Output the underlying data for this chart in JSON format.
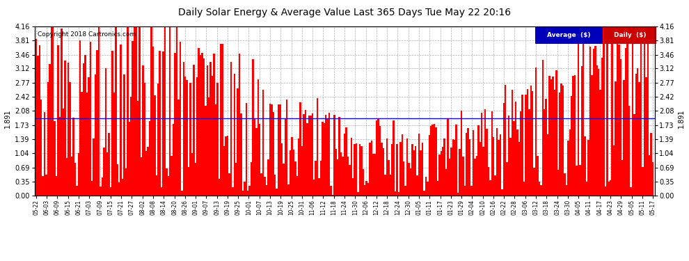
{
  "title": "Daily Solar Energy & Average Value Last 365 Days Tue May 22 20:16",
  "copyright": "Copyright 2018 Cartronics.com",
  "average_value": 1.891,
  "average_label": "1.891",
  "bar_color": "#FF0000",
  "average_line_color": "#0000FF",
  "background_color": "#FFFFFF",
  "plot_bg_color": "#FFFFFF",
  "grid_color": "#999999",
  "ylim": [
    0.0,
    4.16
  ],
  "yticks": [
    0.0,
    0.35,
    0.69,
    1.04,
    1.39,
    1.73,
    2.08,
    2.42,
    2.77,
    3.12,
    3.46,
    3.81,
    4.16
  ],
  "legend_avg_bg": "#0000BB",
  "legend_daily_bg": "#CC0000",
  "legend_avg_text": "Average  ($)",
  "legend_daily_text": "Daily  ($)",
  "x_labels": [
    "05-22",
    "06-03",
    "06-09",
    "06-15",
    "06-21",
    "07-03",
    "07-09",
    "07-15",
    "07-21",
    "07-27",
    "08-02",
    "08-08",
    "08-14",
    "08-20",
    "08-26",
    "09-01",
    "09-07",
    "09-13",
    "09-19",
    "09-25",
    "10-01",
    "10-07",
    "10-13",
    "10-19",
    "10-25",
    "10-31",
    "11-06",
    "11-12",
    "11-18",
    "11-24",
    "11-30",
    "12-06",
    "12-12",
    "12-18",
    "12-24",
    "12-30",
    "01-05",
    "01-11",
    "01-17",
    "01-23",
    "01-29",
    "02-04",
    "02-10",
    "02-16",
    "02-22",
    "02-28",
    "03-06",
    "03-12",
    "03-18",
    "03-24",
    "03-30",
    "04-05",
    "04-11",
    "04-17",
    "04-23",
    "04-29",
    "05-05",
    "05-11",
    "05-17"
  ],
  "num_bars": 365,
  "seed": 42
}
